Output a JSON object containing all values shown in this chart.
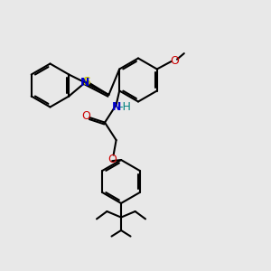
{
  "bg_color": "#e8e8e8",
  "bond_color": "#000000",
  "S_color": "#cccc00",
  "N_color": "#0000cc",
  "O_color": "#cc0000",
  "H_color": "#008080",
  "bond_width": 1.5,
  "figsize": [
    3.0,
    3.0
  ],
  "dpi": 100,
  "xlim": [
    0,
    10
  ],
  "ylim": [
    0,
    10
  ]
}
